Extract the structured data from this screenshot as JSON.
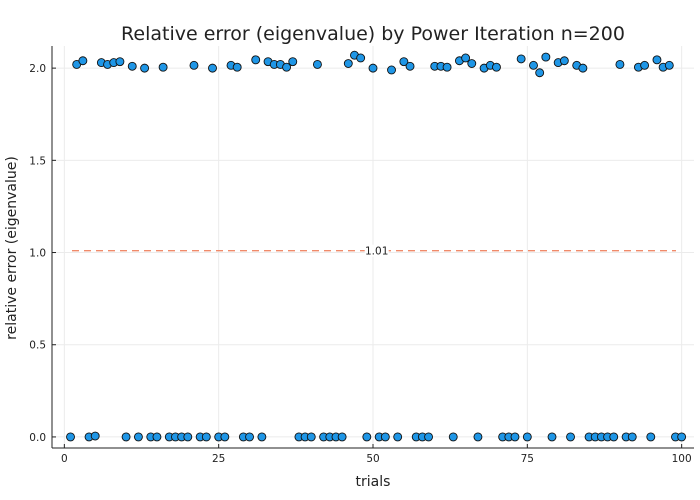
{
  "chart_data": {
    "type": "scatter",
    "title": "Relative error (eigenvalue) by Power Iteration  n=200",
    "xlabel": "trials",
    "ylabel": "relative error (eigenvalue)",
    "xlim": [
      -2,
      102
    ],
    "ylim": [
      -0.06,
      2.12
    ],
    "xticks": [
      0,
      25,
      50,
      75,
      100
    ],
    "yticks": [
      0.0,
      0.5,
      1.0,
      1.5,
      2.0
    ],
    "xtick_labels": [
      "0",
      "25",
      "50",
      "75",
      "100"
    ],
    "ytick_labels": [
      "0.0",
      "0.5",
      "1.0",
      "1.5",
      "2.0"
    ],
    "grid": true,
    "marker_color": "#1f96e6",
    "marker_edge_color": "#111111",
    "reference_line": {
      "y": 1.01,
      "label": "1.01",
      "color": "#f08a6a",
      "dash": "dashed"
    },
    "series": [
      {
        "x": [
          1,
          2,
          3,
          4,
          5,
          6,
          7,
          8,
          9,
          10,
          11,
          12,
          13,
          14,
          15,
          16,
          17,
          18,
          19,
          20,
          21,
          22,
          23,
          24,
          25,
          26,
          27,
          28,
          29,
          30,
          31,
          32,
          33,
          34,
          35,
          36,
          37,
          38,
          39,
          40,
          41,
          42,
          43,
          44,
          45,
          46,
          47,
          48,
          49,
          50,
          51,
          52,
          53,
          54,
          55,
          56,
          57,
          58,
          59,
          60,
          61,
          62,
          63,
          64,
          65,
          66,
          67,
          68,
          69,
          70,
          71,
          72,
          73,
          74,
          75,
          76,
          77,
          78,
          79,
          80,
          81,
          82,
          83,
          84,
          85,
          86,
          87,
          88,
          89,
          90,
          91,
          92,
          93,
          94,
          95,
          96,
          97,
          98,
          99,
          100
        ],
        "y": [
          0.0,
          2.02,
          2.04,
          0.0,
          0.005,
          2.03,
          2.02,
          2.03,
          2.035,
          0.0,
          2.01,
          0.0,
          2.0,
          0.0,
          0.0,
          2.005,
          0.0,
          0.0,
          0.0,
          0.0,
          2.015,
          0.0,
          0.0,
          2.0,
          0.0,
          0.0,
          2.015,
          2.005,
          0.0,
          0.0,
          2.045,
          0.0,
          2.035,
          2.02,
          2.02,
          2.005,
          2.035,
          0.0,
          0.0,
          0.0,
          2.02,
          0.0,
          0.0,
          0.0,
          0.0,
          2.025,
          2.07,
          2.055,
          0.0,
          2.0,
          0.0,
          0.0,
          1.99,
          0.0,
          2.035,
          2.01,
          0.0,
          0.0,
          0.0,
          2.01,
          2.01,
          2.005,
          0.0,
          2.04,
          2.055,
          2.025,
          0.0,
          2.0,
          2.015,
          2.005,
          0.0,
          0.0,
          0.0,
          2.05,
          0.0,
          2.015,
          1.975,
          2.06,
          0.0,
          2.03,
          2.04,
          0.0,
          2.015,
          2.0,
          0.0,
          0.0,
          0.0,
          0.0,
          0.0,
          2.02,
          0.0,
          0.0,
          2.005,
          2.015,
          0.0,
          2.045,
          2.005,
          2.015,
          0.0,
          0.0
        ]
      }
    ]
  }
}
